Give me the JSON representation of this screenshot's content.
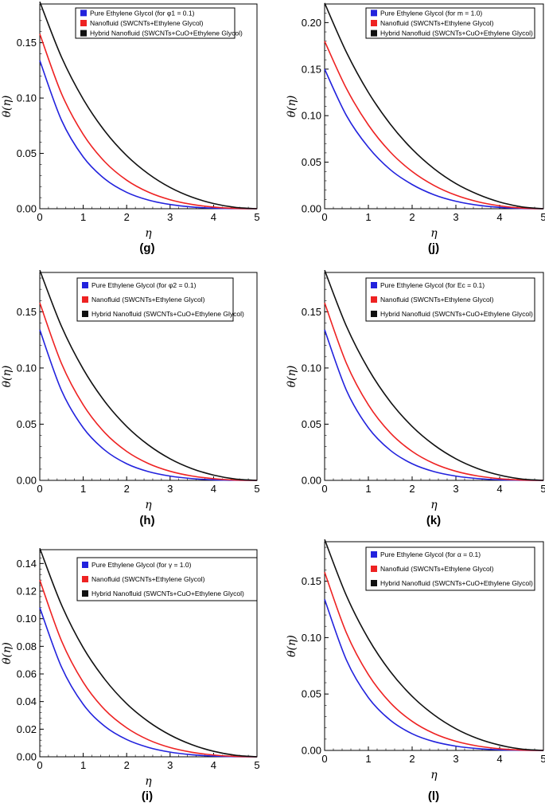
{
  "figure": {
    "panels": [
      {
        "id": "g",
        "label": "(g)",
        "ylabel": "θ(η)",
        "xlabel": "η",
        "legend": [
          "Pure Ethylene Glycol (for φ1 = 0.1)",
          "Nanofluid (SWCNTs+Ethylene Glycol)",
          "Hybrid Nanofluid (SWCNTs+CuO+Ethylene Glycol)"
        ]
      },
      {
        "id": "j",
        "label": "(j)",
        "ylabel": "θ(η)",
        "xlabel": "η",
        "legend": [
          "Pure Ethylene Glycol (for m = 1.0)",
          "Nanofluid (SWCNTs+Ethylene Glycol)",
          "Hybrid Nanofluid (SWCNTs+CuO+Ethylene Glycol)"
        ]
      },
      {
        "id": "h",
        "label": "(h)",
        "ylabel": "θ(η)",
        "xlabel": "η",
        "legend": [
          "Pure Ethylene Glycol (for φ2 = 0.1)",
          "Nanofluid (SWCNTs+Ethylene Glycol)",
          "Hybrid Nanofluid (SWCNTs+CuO+Ethylene Glycol)"
        ]
      },
      {
        "id": "k",
        "label": "(k)",
        "ylabel": "θ(η)",
        "xlabel": "η",
        "legend": [
          "Pure Ethylene Glycol (for Ec = 0.1)",
          "Nanofluid (SWCNTs+Ethylene Glycol)",
          "Hybrid Nanofluid (SWCNTs+CuO+Ethylene Glycol)"
        ]
      },
      {
        "id": "i",
        "label": "(i)",
        "ylabel": "θ(η)",
        "xlabel": "η",
        "legend": [
          "Pure Ethylene Glycol (for γ = 1.0)",
          "Nanofluid (SWCNTs+Ethylene Glycol)",
          "Hybrid Nanofluid (SWCNTs+CuO+Ethylene Glycol)"
        ]
      },
      {
        "id": "l",
        "label": "(l)",
        "ylabel": "θ(η)",
        "xlabel": "η",
        "legend": [
          "Pure Ethylene Glycol (for α = 0.1)",
          "Nanofluid (SWCNTs+Ethylene Glycol)",
          "Hybrid Nanofluid (SWCNTs+CuO+Ethylene Glycol)"
        ]
      }
    ]
  },
  "chart_data": [
    {
      "panel": "g",
      "type": "line",
      "title": "(g)",
      "xlabel": "η",
      "ylabel": "θ(η)",
      "xlim": [
        0,
        5
      ],
      "ylim": [
        0,
        0.185
      ],
      "xticks": [
        0,
        1,
        2,
        3,
        4,
        5
      ],
      "yticks": [
        0.0,
        0.05,
        0.1,
        0.15
      ],
      "ytick_labels": [
        "0.00",
        "0.05",
        "0.10",
        "0.15"
      ],
      "x": [
        0,
        0.5,
        1,
        1.5,
        2,
        2.5,
        3,
        3.5,
        4,
        4.5,
        5
      ],
      "series": [
        {
          "name": "Pure Ethylene Glycol (for φ1 = 0.1)",
          "color": "#2222dd",
          "values": [
            0.134,
            0.08,
            0.0468,
            0.0268,
            0.0148,
            0.0078,
            0.0038,
            0.0016,
            0.0005,
            0.0001,
            0.0
          ]
        },
        {
          "name": "Nanofluid (SWCNTs+Ethylene Glycol)",
          "color": "#ee2222",
          "values": [
            0.158,
            0.104,
            0.0672,
            0.0423,
            0.0258,
            0.015,
            0.0081,
            0.0039,
            0.0015,
            0.0003,
            0.0
          ]
        },
        {
          "name": "Hybrid Nanofluid (SWCNTs+CuO+Ethylene Glycol)",
          "color": "#111111",
          "values": [
            0.187,
            0.137,
            0.099,
            0.07,
            0.048,
            0.0315,
            0.0192,
            0.0105,
            0.0047,
            0.0012,
            0.0
          ]
        }
      ]
    },
    {
      "panel": "j",
      "type": "line",
      "title": "(j)",
      "xlabel": "η",
      "ylabel": "θ(η)",
      "xlim": [
        0,
        5
      ],
      "ylim": [
        0,
        0.22
      ],
      "xticks": [
        0,
        1,
        2,
        3,
        4,
        5
      ],
      "yticks": [
        0.0,
        0.05,
        0.1,
        0.15,
        0.2
      ],
      "ytick_labels": [
        "0.00",
        "0.05",
        "0.10",
        "0.15",
        "0.20"
      ],
      "x": [
        0,
        0.5,
        1,
        1.5,
        2,
        2.5,
        3,
        3.5,
        4,
        4.5,
        5
      ],
      "series": [
        {
          "name": "Pure Ethylene Glycol (for m = 1.0)",
          "color": "#2222dd",
          "values": [
            0.15,
            0.1,
            0.066,
            0.042,
            0.026,
            0.015,
            0.008,
            0.0038,
            0.0014,
            0.0003,
            0.0
          ]
        },
        {
          "name": "Nanofluid (SWCNTs+Ethylene Glycol)",
          "color": "#ee2222",
          "values": [
            0.18,
            0.129,
            0.09,
            0.061,
            0.04,
            0.025,
            0.0145,
            0.0075,
            0.0031,
            0.0007,
            0.0
          ]
        },
        {
          "name": "Hybrid Nanofluid (SWCNTs+CuO+Ethylene Glycol)",
          "color": "#111111",
          "values": [
            0.221,
            0.168,
            0.125,
            0.091,
            0.064,
            0.043,
            0.027,
            0.0155,
            0.0072,
            0.002,
            0.0
          ]
        }
      ]
    },
    {
      "panel": "h",
      "type": "line",
      "title": "(h)",
      "xlabel": "η",
      "ylabel": "θ(η)",
      "xlim": [
        0,
        5
      ],
      "ylim": [
        0,
        0.185
      ],
      "xticks": [
        0,
        1,
        2,
        3,
        4,
        5
      ],
      "yticks": [
        0.0,
        0.05,
        0.1,
        0.15
      ],
      "ytick_labels": [
        "0.00",
        "0.05",
        "0.10",
        "0.15"
      ],
      "x": [
        0,
        0.5,
        1,
        1.5,
        2,
        2.5,
        3,
        3.5,
        4,
        4.5,
        5
      ],
      "series": [
        {
          "name": "Pure Ethylene Glycol (for φ2 = 0.1)",
          "color": "#2222dd",
          "values": [
            0.134,
            0.08,
            0.0468,
            0.0268,
            0.0148,
            0.0078,
            0.0038,
            0.0016,
            0.0005,
            0.0001,
            0.0
          ]
        },
        {
          "name": "Nanofluid (SWCNTs+Ethylene Glycol)",
          "color": "#ee2222",
          "values": [
            0.158,
            0.104,
            0.0672,
            0.0423,
            0.0258,
            0.015,
            0.0081,
            0.0039,
            0.0015,
            0.0003,
            0.0
          ]
        },
        {
          "name": "Hybrid Nanofluid (SWCNTs+CuO+Ethylene Glycol)",
          "color": "#111111",
          "values": [
            0.187,
            0.137,
            0.099,
            0.07,
            0.048,
            0.0315,
            0.0192,
            0.0105,
            0.0047,
            0.0012,
            0.0
          ]
        }
      ]
    },
    {
      "panel": "k",
      "type": "line",
      "title": "(k)",
      "xlabel": "η",
      "ylabel": "θ(η)",
      "xlim": [
        0,
        5
      ],
      "ylim": [
        0,
        0.185
      ],
      "xticks": [
        0,
        1,
        2,
        3,
        4,
        5
      ],
      "yticks": [
        0.0,
        0.05,
        0.1,
        0.15
      ],
      "ytick_labels": [
        "0.00",
        "0.05",
        "0.10",
        "0.15"
      ],
      "x": [
        0,
        0.5,
        1,
        1.5,
        2,
        2.5,
        3,
        3.5,
        4,
        4.5,
        5
      ],
      "series": [
        {
          "name": "Pure Ethylene Glycol (for Ec = 0.1)",
          "color": "#2222dd",
          "values": [
            0.134,
            0.08,
            0.0468,
            0.0268,
            0.0148,
            0.0078,
            0.0038,
            0.0016,
            0.0005,
            0.0001,
            0.0
          ]
        },
        {
          "name": "Nanofluid (SWCNTs+Ethylene Glycol)",
          "color": "#ee2222",
          "values": [
            0.158,
            0.104,
            0.0672,
            0.0423,
            0.0258,
            0.015,
            0.0081,
            0.0039,
            0.0015,
            0.0003,
            0.0
          ]
        },
        {
          "name": "Hybrid Nanofluid (SWCNTs+CuO+Ethylene Glycol)",
          "color": "#111111",
          "values": [
            0.187,
            0.137,
            0.099,
            0.07,
            0.048,
            0.0315,
            0.0192,
            0.0105,
            0.0047,
            0.0012,
            0.0
          ]
        }
      ]
    },
    {
      "panel": "i",
      "type": "line",
      "title": "(i)",
      "xlabel": "η",
      "ylabel": "θ(η)",
      "xlim": [
        0,
        5
      ],
      "ylim": [
        0,
        0.15
      ],
      "xticks": [
        0,
        1,
        2,
        3,
        4,
        5
      ],
      "yticks": [
        0.0,
        0.02,
        0.04,
        0.06,
        0.08,
        0.1,
        0.12,
        0.14
      ],
      "ytick_labels": [
        "0.00",
        "0.02",
        "0.04",
        "0.06",
        "0.08",
        "0.10",
        "0.12",
        "0.14"
      ],
      "x": [
        0,
        0.5,
        1,
        1.5,
        2,
        2.5,
        3,
        3.5,
        4,
        4.5,
        5
      ],
      "series": [
        {
          "name": "Pure Ethylene Glycol (for γ = 1.0)",
          "color": "#2222dd",
          "values": [
            0.108,
            0.065,
            0.038,
            0.022,
            0.0125,
            0.0068,
            0.0034,
            0.0015,
            0.0005,
            0.0001,
            0.0
          ]
        },
        {
          "name": "Nanofluid (SWCNTs+Ethylene Glycol)",
          "color": "#ee2222",
          "values": [
            0.128,
            0.084,
            0.054,
            0.034,
            0.021,
            0.0123,
            0.0067,
            0.0033,
            0.0013,
            0.0003,
            0.0
          ]
        },
        {
          "name": "Hybrid Nanofluid (SWCNTs+CuO+Ethylene Glycol)",
          "color": "#111111",
          "values": [
            0.151,
            0.11,
            0.079,
            0.056,
            0.0385,
            0.0255,
            0.0158,
            0.0088,
            0.004,
            0.0011,
            0.0
          ]
        }
      ]
    },
    {
      "panel": "l",
      "type": "line",
      "title": "(l)",
      "xlabel": "η",
      "ylabel": "θ(η)",
      "xlim": [
        0,
        5
      ],
      "ylim": [
        0,
        0.185
      ],
      "xticks": [
        0,
        1,
        2,
        3,
        4,
        5
      ],
      "yticks": [
        0.0,
        0.05,
        0.1,
        0.15
      ],
      "ytick_labels": [
        "0.00",
        "0.05",
        "0.10",
        "0.15"
      ],
      "x": [
        0,
        0.5,
        1,
        1.5,
        2,
        2.5,
        3,
        3.5,
        4,
        4.5,
        5
      ],
      "series": [
        {
          "name": "Pure Ethylene Glycol (for α = 0.1)",
          "color": "#2222dd",
          "values": [
            0.134,
            0.08,
            0.0468,
            0.0268,
            0.0148,
            0.0078,
            0.0038,
            0.0016,
            0.0005,
            0.0001,
            0.0
          ]
        },
        {
          "name": "Nanofluid (SWCNTs+Ethylene Glycol)",
          "color": "#ee2222",
          "values": [
            0.158,
            0.104,
            0.0672,
            0.0423,
            0.0258,
            0.015,
            0.0081,
            0.0039,
            0.0015,
            0.0003,
            0.0
          ]
        },
        {
          "name": "Hybrid Nanofluid (SWCNTs+CuO+Ethylene Glycol)",
          "color": "#111111",
          "values": [
            0.187,
            0.137,
            0.099,
            0.07,
            0.048,
            0.0315,
            0.0192,
            0.0105,
            0.0047,
            0.0012,
            0.0
          ]
        }
      ]
    }
  ]
}
